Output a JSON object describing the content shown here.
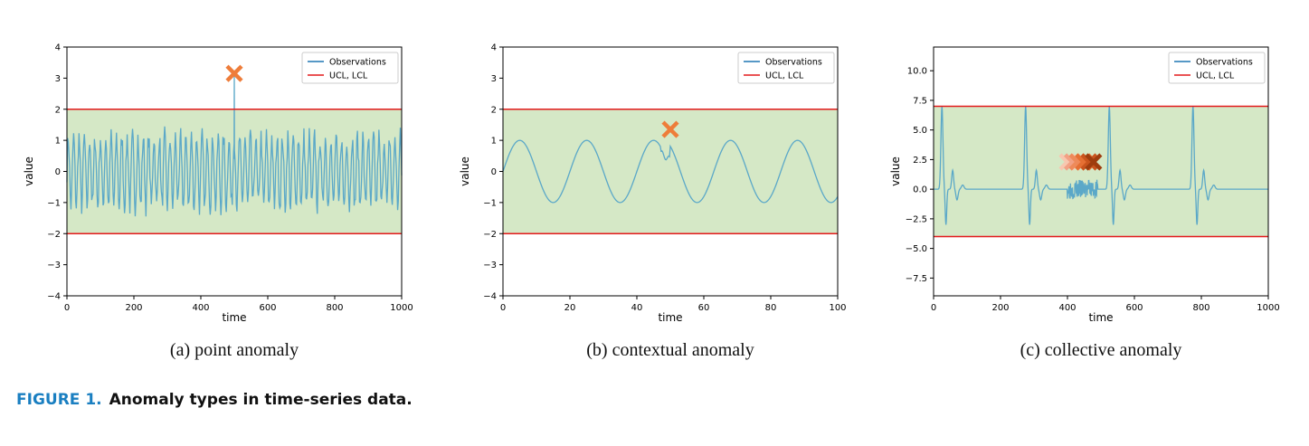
{
  "chart_data": [
    {
      "type": "line",
      "caption": "(a) point anomaly",
      "xlabel": "time",
      "ylabel": "value",
      "xlim": [
        0,
        1000
      ],
      "ylim": [
        -4,
        4
      ],
      "xticks": [
        0,
        200,
        400,
        600,
        800,
        1000
      ],
      "yticks": [
        -4,
        -3,
        -2,
        -1,
        0,
        1,
        2,
        3,
        4
      ],
      "ytick_labels": [
        "−4",
        "−3",
        "−2",
        "−1",
        "0",
        "1",
        "2",
        "3",
        "4"
      ],
      "ucl": 2,
      "lcl": -2,
      "legend": [
        "Observations",
        "UCL, LCL"
      ],
      "legend_position": "top-right",
      "series": {
        "kind": "noisy_oscillation",
        "period": 16,
        "amplitude": 1.1,
        "n_points": 1000
      },
      "spike": {
        "x": 500,
        "y": 3.1
      },
      "anomaly_markers": [
        {
          "x": 500,
          "y": 3.15
        }
      ]
    },
    {
      "type": "line",
      "caption": "(b) contextual anomaly",
      "xlabel": "time",
      "ylabel": "value",
      "xlim": [
        0,
        100
      ],
      "ylim": [
        -4,
        4
      ],
      "xticks": [
        0,
        20,
        40,
        60,
        80,
        100
      ],
      "yticks": [
        -4,
        -3,
        -2,
        -1,
        0,
        1,
        2,
        3,
        4
      ],
      "ytick_labels": [
        "−4",
        "−3",
        "−2",
        "−1",
        "0",
        "1",
        "2",
        "3",
        "4"
      ],
      "ucl": 2,
      "lcl": -2,
      "legend": [
        "Observations",
        "UCL, LCL"
      ],
      "legend_position": "top-right",
      "series": {
        "kind": "sine_with_phase_break",
        "period": 20,
        "amplitude": 1.0,
        "break_x": 50
      },
      "anomaly_markers": [
        {
          "x": 50,
          "y": 1.35
        }
      ]
    },
    {
      "type": "line",
      "caption": "(c) collective anomaly",
      "xlabel": "time",
      "ylabel": "value",
      "xlim": [
        0,
        1000
      ],
      "ylim": [
        -9,
        12
      ],
      "xticks": [
        0,
        200,
        400,
        600,
        800,
        1000
      ],
      "yticks": [
        -7.5,
        -5,
        -2.5,
        0,
        2.5,
        5,
        7.5,
        10
      ],
      "ytick_labels": [
        "−7.5",
        "−5.0",
        "−2.5",
        "0.0",
        "2.5",
        "5.0",
        "7.5",
        "10.0"
      ],
      "ucl": 7,
      "lcl": -4,
      "legend": [
        "Observations",
        "UCL, LCL"
      ],
      "legend_position": "top-right",
      "series": {
        "kind": "heartbeat",
        "beat_times": [
          25,
          275,
          525,
          775
        ],
        "noise_range": [
          400,
          490
        ]
      },
      "anomaly_markers": [
        {
          "x": 400,
          "y": 2.3,
          "color": "#f7c8b0"
        },
        {
          "x": 415,
          "y": 2.3,
          "color": "#f2a184"
        },
        {
          "x": 430,
          "y": 2.3,
          "color": "#ee8a5a"
        },
        {
          "x": 448,
          "y": 2.3,
          "color": "#e56f33"
        },
        {
          "x": 465,
          "y": 2.3,
          "color": "#c9541d"
        },
        {
          "x": 478,
          "y": 2.3,
          "color": "#9e3c0e"
        }
      ]
    }
  ],
  "figure_caption": {
    "number": "FIGURE 1.",
    "text": "Anomaly types in time-series data."
  },
  "colors": {
    "observations": "#5ba8c8",
    "legend_observations": "#1f77b4",
    "control_limits": "#e31a1c",
    "band_fill": "#d5e8c6",
    "marker": "#ee7d3a"
  }
}
